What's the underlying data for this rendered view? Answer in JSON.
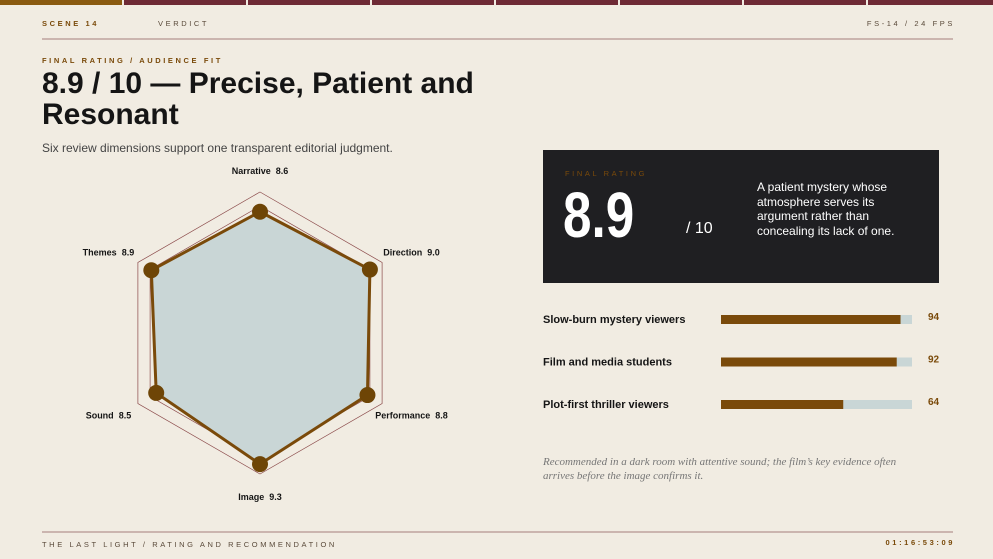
{
  "header": {
    "scene": "SCENE 14",
    "section": "VERDICT",
    "frame": "FS-14 / 24 FPS"
  },
  "kicker": "FINAL RATING / AUDIENCE FIT",
  "title": "8.9 / 10 — Precise, Patient and Resonant",
  "subtitle": "Six review dimensions support one transparent editorial judgment.",
  "rating": {
    "label": "FINAL RATING",
    "score": "8.9",
    "scale": "/ 10",
    "text": "A patient mystery whose atmosphere serves its argument rather than concealing its lack of one."
  },
  "chart_data": [
    {
      "type": "radar",
      "categories": [
        "Narrative",
        "Direction",
        "Performance",
        "Image",
        "Sound",
        "Themes"
      ],
      "values": [
        8.6,
        9.0,
        8.8,
        9.3,
        8.5,
        8.9
      ],
      "value_labels": [
        "8.6",
        "9.0",
        "8.8",
        "9.3",
        "8.5",
        "8.9"
      ],
      "rlim": [
        0,
        10
      ],
      "rticks": [
        9,
        10
      ],
      "color": "#7a4a0a",
      "fill": "#c9d6d6"
    },
    {
      "type": "hbar",
      "categories": [
        "Slow-burn mystery viewers",
        "Film and media students",
        "Plot-first thriller viewers"
      ],
      "values": [
        94,
        92,
        64
      ],
      "xlim": [
        0,
        100
      ],
      "color": "#7a4a0a",
      "track": "#c9d6d6"
    }
  ],
  "note": "Recommended in a dark room with attentive sound; the film’s key evidence often arrives before the image confirms it.",
  "footer": {
    "title": "THE LAST LIGHT / RATING AND RECOMMENDATION",
    "timecode": "01:16:53:09"
  }
}
